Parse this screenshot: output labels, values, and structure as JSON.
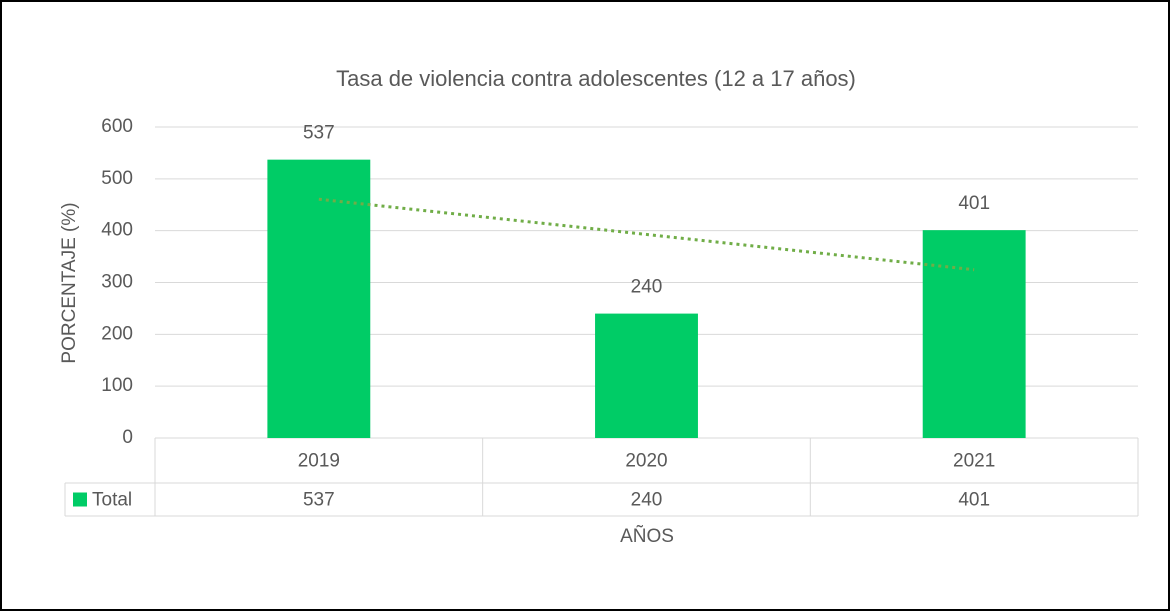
{
  "chart_data": {
    "type": "bar",
    "title": "Tasa de violencia contra adolescentes (12 a 17 años)",
    "categories": [
      "2019",
      "2020",
      "2021"
    ],
    "series": [
      {
        "name": "Total",
        "color": "#00cc66",
        "values": [
          537,
          240,
          401
        ]
      }
    ],
    "ylim": [
      0,
      600
    ],
    "yticks": [
      0,
      100,
      200,
      300,
      400,
      500,
      600
    ],
    "grid": true,
    "x_label": "AÑOS",
    "y_label": "PORCENTAJE (%)",
    "data_labels": true,
    "data_table": true,
    "trendline": {
      "type": "linear",
      "color": "#70ad47"
    }
  }
}
